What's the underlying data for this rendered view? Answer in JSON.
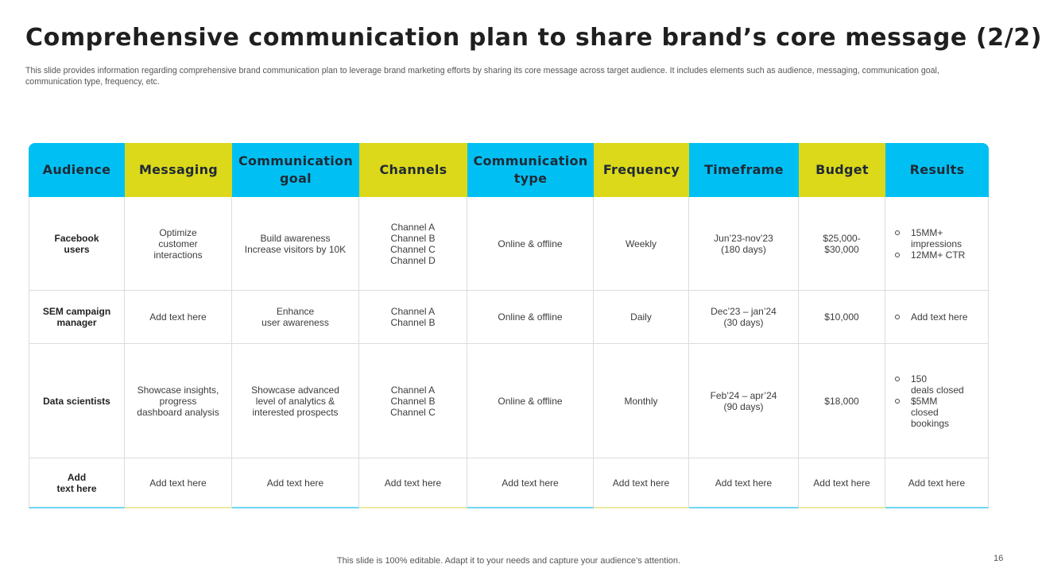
{
  "slide": {
    "title": "Comprehensive communication plan to share brand’s core message (2/2)",
    "subtitle": "This slide provides information regarding comprehensive brand communication plan to leverage brand marketing efforts by sharing its core message across target audience. It includes elements such as audience, messaging, communication goal, communication type, frequency, etc.",
    "footer": "This slide is 100% editable. Adapt it to your needs and capture your audience’s attention.",
    "page_number": "16"
  },
  "colors": {
    "header_blue": "#00c0f3",
    "header_yellow": "#dcd81a"
  },
  "table": {
    "headers": [
      "Audience",
      "Messaging",
      "Communication goal",
      "Channels",
      "Communication type",
      "Frequency",
      "Timeframe",
      "Budget",
      "Results"
    ],
    "rows": [
      {
        "audience": [
          "Facebook",
          "users"
        ],
        "messaging": [
          "Optimize",
          "customer",
          "interactions"
        ],
        "goal": [
          "Build awareness",
          "Increase visitors by 10K"
        ],
        "channels": [
          "Channel A",
          "Channel B",
          "Channel C",
          "Channel D"
        ],
        "type": [
          "Online & offline"
        ],
        "frequency": [
          "Weekly"
        ],
        "timeframe": [
          "Jun’23-nov’23",
          "(180 days)"
        ],
        "budget": [
          "$25,000-",
          "$30,000"
        ],
        "results": [
          [
            "15MM+",
            "impressions"
          ],
          [
            "12MM+  CTR"
          ]
        ]
      },
      {
        "audience": [
          "SEM campaign",
          "manager"
        ],
        "messaging": [
          "Add text here"
        ],
        "goal": [
          "Enhance",
          "user awareness"
        ],
        "channels": [
          "Channel A",
          "Channel B"
        ],
        "type": [
          "Online & offline"
        ],
        "frequency": [
          "Daily"
        ],
        "timeframe": [
          "Dec’23 – jan’24",
          "(30 days)"
        ],
        "budget": [
          "$10,000"
        ],
        "results": [
          [
            "Add text here"
          ]
        ]
      },
      {
        "audience": [
          "Data scientists"
        ],
        "messaging": [
          "Showcase insights,",
          "progress",
          "dashboard analysis"
        ],
        "goal": [
          "Showcase advanced",
          "level of analytics &",
          "interested prospects"
        ],
        "channels": [
          "Channel A",
          "Channel B",
          "Channel C"
        ],
        "type": [
          "Online & offline"
        ],
        "frequency": [
          "Monthly"
        ],
        "timeframe": [
          "Feb’24 – apr’24",
          "(90 days)"
        ],
        "budget": [
          "$18,000"
        ],
        "results": [
          [
            "150",
            "deals closed"
          ],
          [
            "$5MM",
            "closed",
            "bookings"
          ]
        ]
      },
      {
        "audience": [
          "Add",
          "text here"
        ],
        "messaging": [
          "Add text here"
        ],
        "goal": [
          "Add text here"
        ],
        "channels": [
          "Add text here"
        ],
        "type": [
          "Add text here"
        ],
        "frequency": [
          "Add text here"
        ],
        "timeframe": [
          "Add text here"
        ],
        "budget": [
          "Add text here"
        ],
        "results_plain": [
          "Add text here"
        ]
      }
    ]
  }
}
